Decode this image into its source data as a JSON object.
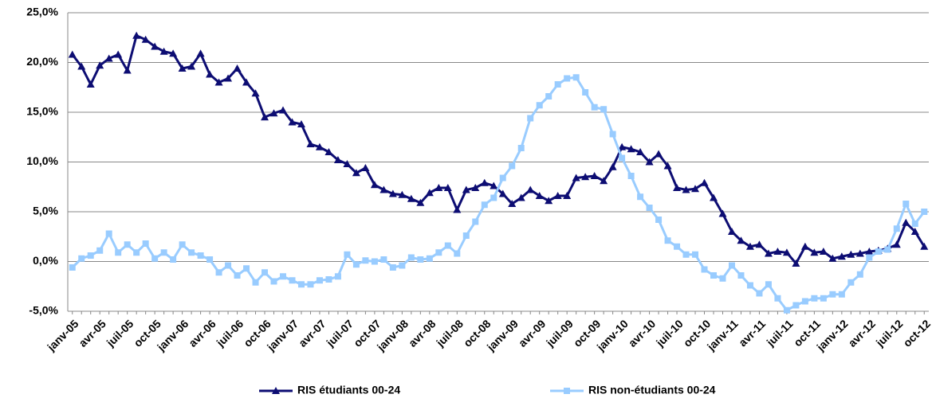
{
  "chart_data": {
    "type": "line",
    "categories": [
      "janv-05",
      null,
      null,
      "avr-05",
      null,
      null,
      "juil-05",
      null,
      null,
      "oct-05",
      null,
      null,
      "janv-06",
      null,
      null,
      "avr-06",
      null,
      null,
      "juil-06",
      null,
      null,
      "oct-06",
      null,
      null,
      "janv-07",
      null,
      null,
      "avr-07",
      null,
      null,
      "juil-07",
      null,
      null,
      "oct-07",
      null,
      null,
      "janv-08",
      null,
      null,
      "avr-08",
      null,
      null,
      "juil-08",
      null,
      null,
      "oct-08",
      null,
      null,
      "janv-09",
      null,
      null,
      "avr-09",
      null,
      null,
      "juil-09",
      null,
      null,
      "oct-09",
      null,
      null,
      "janv-10",
      null,
      null,
      "avr-10",
      null,
      null,
      "juil-10",
      null,
      null,
      "oct-10",
      null,
      null,
      "janv-11",
      null,
      null,
      "avr-11",
      null,
      null,
      "juil-11",
      null,
      null,
      "oct-11",
      null,
      null,
      "janv-12",
      null,
      null,
      "avr-12",
      null,
      null,
      "juil-12",
      null,
      null,
      "oct-12"
    ],
    "series": [
      {
        "name": "RIS étudiants 00-24",
        "color": "#0d0d73",
        "marker": "triangle",
        "values": [
          20.8,
          19.6,
          17.8,
          19.7,
          20.4,
          20.8,
          19.2,
          22.7,
          22.3,
          21.6,
          21.1,
          20.9,
          19.4,
          19.6,
          20.9,
          18.8,
          18.0,
          18.4,
          19.4,
          18.0,
          16.9,
          14.5,
          14.9,
          15.2,
          14.0,
          13.8,
          11.8,
          11.5,
          11.0,
          10.2,
          9.8,
          8.9,
          9.4,
          7.7,
          7.2,
          6.8,
          6.7,
          6.3,
          5.9,
          6.9,
          7.4,
          7.4,
          5.2,
          7.2,
          7.4,
          7.9,
          7.6,
          6.8,
          5.8,
          6.4,
          7.2,
          6.6,
          6.1,
          6.6,
          6.6,
          8.4,
          8.5,
          8.6,
          8.1,
          9.5,
          11.5,
          11.3,
          11.0,
          10.0,
          10.8,
          9.6,
          7.4,
          7.2,
          7.3,
          7.9,
          6.4,
          4.8,
          3.0,
          2.1,
          1.5,
          1.7,
          0.8,
          1.0,
          0.9,
          -0.2,
          1.5,
          0.9,
          1.0,
          0.3,
          0.5,
          0.7,
          0.8,
          1.0,
          1.1,
          1.3,
          1.7,
          3.9,
          3.0,
          1.5
        ]
      },
      {
        "name": "RIS non-étudiants 00-24",
        "color": "#99ccff",
        "marker": "square",
        "values": [
          -0.6,
          0.3,
          0.6,
          1.1,
          2.8,
          0.9,
          1.7,
          0.9,
          1.8,
          0.3,
          0.9,
          0.2,
          1.7,
          0.9,
          0.6,
          0.2,
          -1.1,
          -0.4,
          -1.4,
          -0.7,
          -2.1,
          -1.1,
          -2.0,
          -1.5,
          -1.9,
          -2.3,
          -2.3,
          -1.9,
          -1.8,
          -1.5,
          0.7,
          -0.3,
          0.1,
          0.0,
          0.2,
          -0.6,
          -0.4,
          0.4,
          0.2,
          0.3,
          0.9,
          1.6,
          0.8,
          2.6,
          4.0,
          5.7,
          6.4,
          8.4,
          9.6,
          11.4,
          14.4,
          15.7,
          16.6,
          17.8,
          18.4,
          18.5,
          17.0,
          15.5,
          15.3,
          12.8,
          10.4,
          8.6,
          6.5,
          5.4,
          4.2,
          2.1,
          1.5,
          0.7,
          0.7,
          -0.8,
          -1.4,
          -1.7,
          -0.4,
          -1.4,
          -2.4,
          -3.2,
          -2.3,
          -3.7,
          -4.9,
          -4.4,
          -4.0,
          -3.7,
          -3.7,
          -3.3,
          -3.3,
          -2.1,
          -1.3,
          0.4,
          1.0,
          1.2,
          3.3,
          5.8,
          3.8,
          5.0
        ]
      }
    ],
    "ylim": [
      -5,
      25
    ],
    "yticks": [
      {
        "value": -5,
        "label": "-5,0%"
      },
      {
        "value": 0,
        "label": "0,0%"
      },
      {
        "value": 5,
        "label": "5,0%"
      },
      {
        "value": 10,
        "label": "10,0%"
      },
      {
        "value": 15,
        "label": "15,0%"
      },
      {
        "value": 20,
        "label": "20,0%"
      },
      {
        "value": 25,
        "label": "25,0%"
      }
    ],
    "grid": true,
    "legend": "bottom"
  }
}
